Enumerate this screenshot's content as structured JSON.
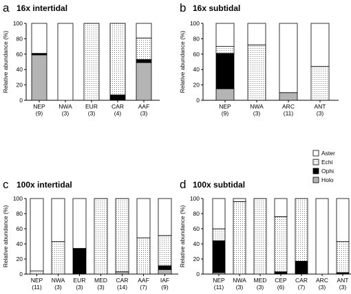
{
  "legend": [
    {
      "name": "Aster",
      "fill": "white"
    },
    {
      "name": "Echi",
      "fill": "dots"
    },
    {
      "name": "Ophi",
      "fill": "black"
    },
    {
      "name": "Holo",
      "fill": "gray"
    }
  ],
  "colors": {
    "holo": "#b4b4b4",
    "ophi": "#000000",
    "aster": "#ffffff",
    "echi_dots": "#555555"
  },
  "chart_data": [
    {
      "type": "bar",
      "stacked": true,
      "panel": "a",
      "title": "16x intertidal",
      "ylabel": "Relative abundance (%)",
      "ylim": [
        0,
        100
      ],
      "yticks": [
        "0",
        "20",
        "40",
        "60",
        "80",
        "100"
      ],
      "categories": [
        "NEP",
        "NWA",
        "EUR",
        "CAR",
        "AAF"
      ],
      "category_counts": [
        "(9)",
        "(3)",
        "(3)",
        "(4)",
        "(3)"
      ],
      "series": [
        {
          "name": "Holo",
          "values": [
            59,
            0,
            0,
            0,
            49
          ]
        },
        {
          "name": "Ophi",
          "values": [
            2,
            0,
            0,
            7,
            4
          ]
        },
        {
          "name": "Echi",
          "values": [
            0,
            0,
            100,
            93,
            28
          ]
        },
        {
          "name": "Aster",
          "values": [
            39,
            100,
            0,
            0,
            19
          ]
        }
      ]
    },
    {
      "type": "bar",
      "stacked": true,
      "panel": "b",
      "title": "16x subtidal",
      "ylabel": "Relative abundance (%)",
      "ylim": [
        0,
        100
      ],
      "yticks": [
        "0",
        "20",
        "40",
        "60",
        "80",
        "100"
      ],
      "categories": [
        "NEP",
        "NWA",
        "ARC",
        "ANT"
      ],
      "category_counts": [
        "(9)",
        "(3)",
        "(11)",
        "(3)"
      ],
      "series": [
        {
          "name": "Holo",
          "values": [
            15,
            0,
            10,
            0
          ]
        },
        {
          "name": "Ophi",
          "values": [
            46,
            0,
            0,
            0
          ]
        },
        {
          "name": "Echi",
          "values": [
            9,
            72,
            0,
            44
          ]
        },
        {
          "name": "Aster",
          "values": [
            30,
            28,
            90,
            56
          ]
        }
      ]
    },
    {
      "type": "bar",
      "stacked": true,
      "panel": "c",
      "title": "100x intertidal",
      "ylabel": "Relative abundance (%)",
      "ylim": [
        0,
        100
      ],
      "yticks": [
        "0",
        "20",
        "40",
        "60",
        "80",
        "100"
      ],
      "categories": [
        "NEP",
        "NWA",
        "EUR",
        "MED",
        "CAR",
        "AAF",
        "IAF"
      ],
      "category_counts": [
        "(11)",
        "(3)",
        "(3)",
        "(3)",
        "(14)",
        "(7)",
        "(9)"
      ],
      "series": [
        {
          "name": "Holo",
          "values": [
            0,
            0,
            0,
            0,
            3,
            0,
            6
          ]
        },
        {
          "name": "Ophi",
          "values": [
            0,
            0,
            34,
            0,
            0,
            0,
            5
          ]
        },
        {
          "name": "Echi",
          "values": [
            4,
            43,
            0,
            100,
            97,
            48,
            40
          ]
        },
        {
          "name": "Aster",
          "values": [
            96,
            57,
            66,
            0,
            0,
            52,
            49
          ]
        }
      ]
    },
    {
      "type": "bar",
      "stacked": true,
      "panel": "d",
      "title": "100x subtidal",
      "ylabel": "Relative abundance (%)",
      "ylim": [
        0,
        100
      ],
      "yticks": [
        "0",
        "20",
        "40",
        "60",
        "80",
        "100"
      ],
      "categories": [
        "NEP",
        "NWA",
        "MED",
        "CEP",
        "CAR",
        "ARC",
        "ANT"
      ],
      "category_counts": [
        "(11)",
        "(3)",
        "(3)",
        "(6)",
        "(7)",
        "(3)",
        "(3)"
      ],
      "series": [
        {
          "name": "Holo",
          "values": [
            2,
            0,
            0,
            0,
            0,
            0,
            0
          ]
        },
        {
          "name": "Ophi",
          "values": [
            42,
            0,
            0,
            3,
            17,
            0,
            2
          ]
        },
        {
          "name": "Echi",
          "values": [
            16,
            96,
            100,
            73,
            83,
            0,
            41
          ]
        },
        {
          "name": "Aster",
          "values": [
            40,
            4,
            0,
            24,
            0,
            100,
            57
          ]
        }
      ]
    }
  ]
}
